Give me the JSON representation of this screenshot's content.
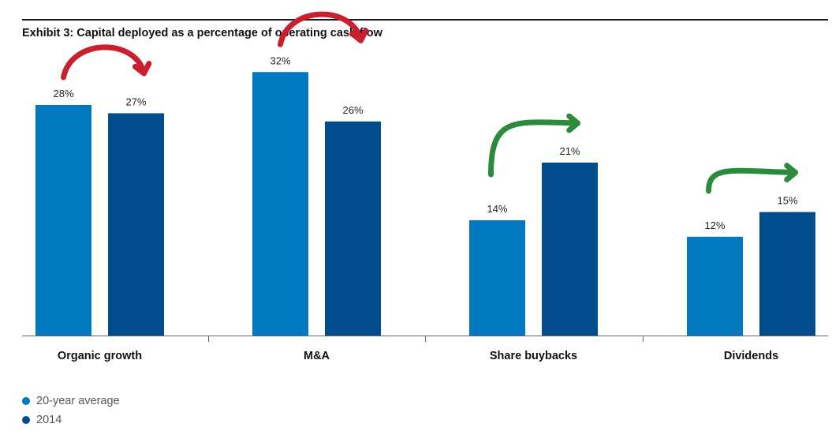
{
  "chart_data": {
    "type": "bar",
    "title": "Exhibit 3: Capital deployed as a percentage of operating cash flow",
    "categories": [
      "Organic growth",
      "M&A",
      "Share buybacks",
      "Dividends"
    ],
    "series": [
      {
        "name": "20-year average",
        "values": [
          28,
          32,
          14,
          12
        ],
        "labels": [
          "28%",
          "32%",
          "14%",
          "12%"
        ],
        "color": "#0079C1"
      },
      {
        "name": "2014",
        "values": [
          27,
          26,
          21,
          15
        ],
        "labels": [
          "27%",
          "26%",
          "21%",
          "15%"
        ],
        "color": "#004C8C"
      }
    ],
    "ylim": [
      0,
      35
    ],
    "grid": false,
    "legend": "bottom-left",
    "trend_arrows": [
      {
        "category": "Organic growth",
        "direction": "down",
        "color": "#C8202E"
      },
      {
        "category": "M&A",
        "direction": "down",
        "color": "#C8202E"
      },
      {
        "category": "Share buybacks",
        "direction": "up",
        "color": "#2C8A3C"
      },
      {
        "category": "Dividends",
        "direction": "up",
        "color": "#2C8A3C"
      }
    ]
  }
}
